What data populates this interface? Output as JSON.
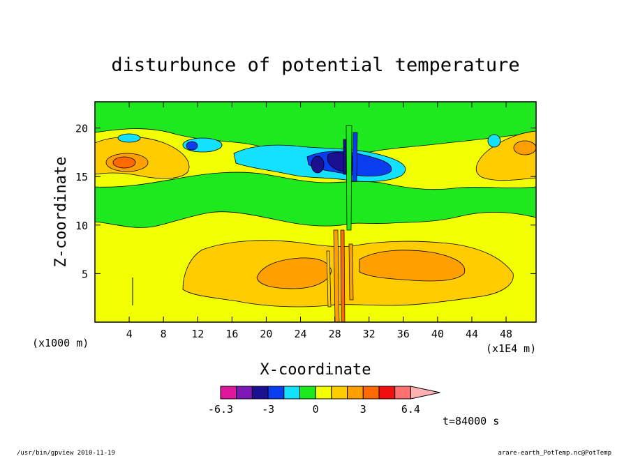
{
  "chart_data": {
    "type": "heatmap",
    "title": "disturbunce of potential temperature",
    "xlabel": "X-coordinate",
    "ylabel": "Z-coordinate",
    "x_unit_left": "(x1000 m)",
    "x_unit_right": "(x1E4 m)",
    "xlim": [
      0,
      51.5
    ],
    "ylim": [
      0,
      22.7
    ],
    "xticks": [
      4,
      8,
      12,
      16,
      20,
      24,
      28,
      32,
      36,
      40,
      44,
      48
    ],
    "yticks": [
      5,
      10,
      15,
      20
    ],
    "time_label": "t=84000 s",
    "colorbar": {
      "colors": [
        "#e0169d",
        "#7e17b8",
        "#1a1090",
        "#0a3cf0",
        "#14e0ff",
        "#1ee81e",
        "#f2ff00",
        "#ffcc00",
        "#ffa000",
        "#ff6a00",
        "#f01010",
        "#ff7070",
        "#ffb0b0"
      ],
      "tick_labels": [
        "-6.3",
        "-3",
        "0",
        "3",
        "6.4"
      ]
    }
  },
  "footer": {
    "left": "/usr/bin/gpview  2010-11-19",
    "right": "arare-earth_PotTemp.nc@PotTemp"
  }
}
